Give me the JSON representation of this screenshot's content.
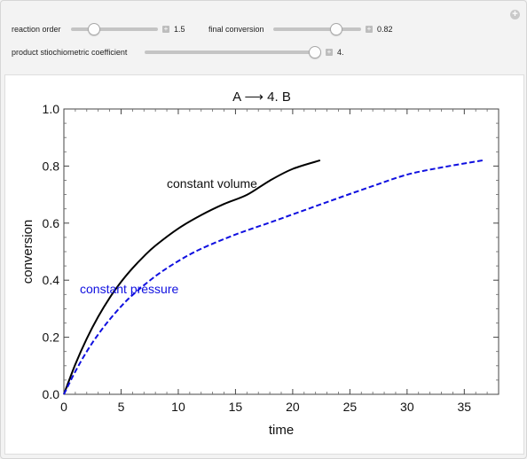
{
  "controls": {
    "reaction_order": {
      "label": "reaction order",
      "value": "1.5",
      "fraction": 0.27
    },
    "final_conversion": {
      "label": "final conversion",
      "value": "0.82",
      "fraction": 0.72
    },
    "product_coefficient": {
      "label": "product stiochiometric coefficient",
      "value": "4.",
      "fraction": 0.97
    }
  },
  "plot": {
    "title": "A ⟶ 4. B",
    "annotation_cv": "constant volume",
    "annotation_cp": "constant pressure"
  },
  "colors": {
    "constant_volume": "#000000",
    "constant_pressure": "#1010e0"
  },
  "chart_data": {
    "type": "line",
    "title": "A ⟶ 4. B",
    "xlabel": "time",
    "ylabel": "conversion",
    "xlim": [
      0,
      38
    ],
    "ylim": [
      0,
      1.0
    ],
    "xticks": [
      0,
      5,
      10,
      15,
      20,
      25,
      30,
      35
    ],
    "yticks": [
      0.0,
      0.2,
      0.4,
      0.6,
      0.8,
      1.0
    ],
    "ytick_labels": [
      "0.0",
      "0.2",
      "0.4",
      "0.6",
      "0.8",
      "1.0"
    ],
    "grid": false,
    "series": [
      {
        "name": "constant volume",
        "style": "solid",
        "x": [
          0,
          1,
          2,
          3,
          4,
          5,
          6,
          7,
          8,
          10,
          12,
          14,
          16,
          18,
          20,
          22.4
        ],
        "y": [
          0,
          0.105,
          0.195,
          0.272,
          0.338,
          0.394,
          0.442,
          0.484,
          0.521,
          0.581,
          0.628,
          0.667,
          0.699,
          0.749,
          0.79,
          0.82
        ]
      },
      {
        "name": "constant pressure",
        "style": "dashed",
        "x": [
          0,
          1,
          2,
          3,
          4,
          5,
          6,
          8,
          10,
          12,
          15,
          18,
          21,
          24,
          27,
          30,
          33,
          36.6
        ],
        "y": [
          0,
          0.08,
          0.15,
          0.21,
          0.262,
          0.308,
          0.348,
          0.414,
          0.467,
          0.51,
          0.56,
          0.602,
          0.645,
          0.688,
          0.73,
          0.77,
          0.795,
          0.82
        ]
      }
    ]
  }
}
